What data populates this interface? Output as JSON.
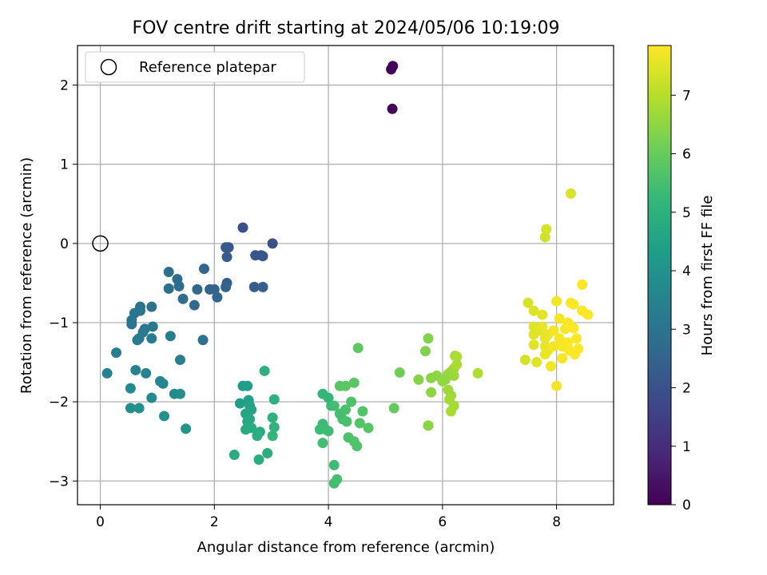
{
  "chart_data": {
    "type": "scatter",
    "title": "FOV centre drift starting at 2024/05/06 10:19:09",
    "xlabel": "Angular distance from reference (arcmin)",
    "ylabel": "Rotation from reference (arcmin)",
    "xlim": [
      -0.4,
      9.0
    ],
    "ylim": [
      -3.3,
      2.5
    ],
    "xticks": [
      0,
      2,
      4,
      6,
      8
    ],
    "yticks": [
      -3,
      -2,
      -1,
      0,
      1,
      2
    ],
    "grid": true,
    "legend": {
      "location": "upper-left",
      "entries": [
        "Reference platepar"
      ]
    },
    "reference_point": {
      "x": 0,
      "y": 0,
      "label": "Reference platepar"
    },
    "colorbar": {
      "label": "Hours from first FF file",
      "colormap": "viridis",
      "range": [
        0,
        7.85
      ],
      "ticks": [
        0,
        1,
        2,
        3,
        4,
        5,
        6,
        7
      ]
    },
    "colormap_stops": [
      "#440154",
      "#482878",
      "#3e4989",
      "#31688e",
      "#26828e",
      "#1f9e89",
      "#35b779",
      "#6ece58",
      "#b5de2b",
      "#fde725"
    ],
    "points": [
      [
        5.1,
        2.2,
        0.0
      ],
      [
        5.13,
        2.24,
        0.05
      ],
      [
        5.12,
        1.7,
        0.1
      ],
      [
        2.5,
        0.2,
        1.95
      ],
      [
        3.02,
        0.0,
        2.0
      ],
      [
        2.82,
        -0.15,
        2.05
      ],
      [
        2.72,
        -0.15,
        2.05
      ],
      [
        2.85,
        -0.16,
        2.1
      ],
      [
        2.25,
        -0.05,
        2.15
      ],
      [
        2.2,
        -0.05,
        2.2
      ],
      [
        2.22,
        -0.17,
        2.25
      ],
      [
        2.7,
        -0.55,
        2.3
      ],
      [
        2.85,
        -0.55,
        2.35
      ],
      [
        2.22,
        -0.5,
        2.4
      ],
      [
        2.2,
        -0.55,
        2.45
      ],
      [
        2.0,
        -0.58,
        2.5
      ],
      [
        1.92,
        -0.58,
        2.5
      ],
      [
        2.05,
        -0.68,
        2.55
      ],
      [
        1.82,
        -0.32,
        2.6
      ],
      [
        1.7,
        -0.58,
        2.65
      ],
      [
        1.65,
        -0.78,
        2.7
      ],
      [
        1.45,
        -0.7,
        2.75
      ],
      [
        1.35,
        -0.45,
        2.8
      ],
      [
        1.38,
        -0.54,
        2.8
      ],
      [
        1.2,
        -0.36,
        2.85
      ],
      [
        1.2,
        -0.57,
        2.9
      ],
      [
        1.8,
        -1.22,
        2.95
      ],
      [
        0.9,
        -0.8,
        3.0
      ],
      [
        0.7,
        -0.8,
        3.0
      ],
      [
        0.6,
        -0.88,
        3.05
      ],
      [
        0.7,
        -0.85,
        3.05
      ],
      [
        0.55,
        -0.97,
        3.1
      ],
      [
        0.55,
        -1.02,
        3.1
      ],
      [
        0.78,
        -1.08,
        3.15
      ],
      [
        0.92,
        -1.05,
        3.15
      ],
      [
        0.75,
        -1.12,
        3.2
      ],
      [
        0.68,
        -1.2,
        3.2
      ],
      [
        0.65,
        -1.22,
        3.25
      ],
      [
        0.9,
        -1.2,
        3.25
      ],
      [
        1.23,
        -1.17,
        3.3
      ],
      [
        1.4,
        -1.47,
        3.35
      ],
      [
        0.28,
        -1.38,
        3.4
      ],
      [
        0.12,
        -1.64,
        3.45
      ],
      [
        0.62,
        -1.6,
        3.5
      ],
      [
        0.8,
        -1.64,
        3.55
      ],
      [
        1.05,
        -1.74,
        3.6
      ],
      [
        1.1,
        -1.77,
        3.65
      ],
      [
        0.53,
        -1.83,
        3.7
      ],
      [
        0.9,
        -1.95,
        3.75
      ],
      [
        1.3,
        -1.9,
        3.8
      ],
      [
        1.4,
        -1.9,
        3.85
      ],
      [
        0.53,
        -2.08,
        3.9
      ],
      [
        0.68,
        -2.08,
        3.95
      ],
      [
        1.12,
        -2.18,
        4.0
      ],
      [
        1.5,
        -2.34,
        4.05
      ],
      [
        2.5,
        -1.8,
        4.3
      ],
      [
        2.58,
        -1.8,
        4.35
      ],
      [
        2.45,
        -2.02,
        4.4
      ],
      [
        2.6,
        -1.98,
        4.45
      ],
      [
        2.62,
        -2.05,
        4.5
      ],
      [
        2.65,
        -2.1,
        4.55
      ],
      [
        2.55,
        -2.15,
        4.6
      ],
      [
        2.62,
        -2.22,
        4.65
      ],
      [
        2.58,
        -2.25,
        4.7
      ],
      [
        2.55,
        -2.35,
        4.75
      ],
      [
        2.65,
        -2.33,
        4.8
      ],
      [
        2.8,
        -2.38,
        4.85
      ],
      [
        2.75,
        -2.43,
        4.9
      ],
      [
        2.88,
        -1.61,
        4.95
      ],
      [
        3.05,
        -1.97,
        5.0
      ],
      [
        3.02,
        -2.2,
        5.05
      ],
      [
        3.05,
        -2.32,
        5.1
      ],
      [
        3.02,
        -2.43,
        5.15
      ],
      [
        2.35,
        -2.67,
        4.8
      ],
      [
        2.78,
        -2.73,
        4.85
      ],
      [
        2.93,
        -2.65,
        4.9
      ],
      [
        3.9,
        -1.9,
        5.2
      ],
      [
        4.0,
        -1.95,
        5.25
      ],
      [
        4.05,
        -2.05,
        5.3
      ],
      [
        3.85,
        -2.35,
        5.35
      ],
      [
        3.9,
        -2.28,
        5.35
      ],
      [
        3.95,
        -2.35,
        5.4
      ],
      [
        4.0,
        -2.37,
        5.4
      ],
      [
        3.9,
        -2.52,
        5.45
      ],
      [
        4.1,
        -2.05,
        5.45
      ],
      [
        4.2,
        -2.15,
        5.5
      ],
      [
        4.25,
        -2.22,
        5.5
      ],
      [
        4.3,
        -2.1,
        5.55
      ],
      [
        4.32,
        -2.25,
        5.55
      ],
      [
        4.4,
        -2.0,
        5.6
      ],
      [
        4.35,
        -2.45,
        5.6
      ],
      [
        4.45,
        -2.5,
        5.65
      ],
      [
        4.5,
        -2.56,
        5.65
      ],
      [
        4.6,
        -2.12,
        5.7
      ],
      [
        4.55,
        -2.27,
        5.7
      ],
      [
        4.7,
        -2.33,
        5.75
      ],
      [
        4.2,
        -1.8,
        5.75
      ],
      [
        4.3,
        -1.8,
        5.8
      ],
      [
        4.45,
        -1.76,
        5.8
      ],
      [
        4.52,
        -1.32,
        5.85
      ],
      [
        4.1,
        -2.8,
        5.4
      ],
      [
        4.1,
        -3.03,
        5.45
      ],
      [
        4.15,
        -2.98,
        5.5
      ],
      [
        5.15,
        -2.08,
        5.95
      ],
      [
        5.25,
        -1.63,
        6.1
      ],
      [
        5.7,
        -1.36,
        6.3
      ],
      [
        5.75,
        -1.2,
        6.35
      ],
      [
        5.58,
        -1.72,
        6.4
      ],
      [
        5.8,
        -1.7,
        6.45
      ],
      [
        5.9,
        -1.67,
        6.5
      ],
      [
        5.8,
        -1.88,
        6.5
      ],
      [
        6.0,
        -1.74,
        6.55
      ],
      [
        6.05,
        -1.72,
        6.55
      ],
      [
        6.1,
        -1.65,
        6.6
      ],
      [
        6.15,
        -1.62,
        6.6
      ],
      [
        6.2,
        -1.58,
        6.65
      ],
      [
        6.2,
        -1.67,
        6.65
      ],
      [
        6.1,
        -1.85,
        6.7
      ],
      [
        6.15,
        -1.92,
        6.7
      ],
      [
        6.12,
        -1.97,
        6.75
      ],
      [
        6.2,
        -2.05,
        6.75
      ],
      [
        6.15,
        -2.12,
        6.8
      ],
      [
        6.22,
        -1.42,
        6.8
      ],
      [
        6.25,
        -1.43,
        6.85
      ],
      [
        6.25,
        -1.53,
        6.85
      ],
      [
        6.62,
        -1.64,
        6.9
      ],
      [
        5.75,
        -2.3,
        6.45
      ],
      [
        7.45,
        -1.47,
        7.35
      ],
      [
        7.5,
        -0.75,
        7.4
      ],
      [
        7.6,
        -0.85,
        7.45
      ],
      [
        7.6,
        -1.05,
        7.45
      ],
      [
        7.6,
        -1.15,
        7.5
      ],
      [
        7.6,
        -1.28,
        7.5
      ],
      [
        7.65,
        -1.5,
        7.5
      ],
      [
        7.7,
        -1.1,
        7.55
      ],
      [
        7.75,
        -0.9,
        7.55
      ],
      [
        7.75,
        -1.05,
        7.6
      ],
      [
        7.8,
        -1.2,
        7.6
      ],
      [
        7.8,
        -1.3,
        7.6
      ],
      [
        7.8,
        -1.4,
        7.65
      ],
      [
        7.85,
        -1.15,
        7.65
      ],
      [
        7.85,
        -1.35,
        7.65
      ],
      [
        7.9,
        -1.55,
        7.7
      ],
      [
        7.95,
        -1.3,
        7.7
      ],
      [
        7.95,
        -1.1,
        7.7
      ],
      [
        8.0,
        -0.73,
        7.72
      ],
      [
        8.0,
        -1.8,
        7.72
      ],
      [
        8.05,
        -0.95,
        7.74
      ],
      [
        8.05,
        -1.2,
        7.74
      ],
      [
        8.1,
        -1.3,
        7.76
      ],
      [
        8.1,
        -1.45,
        7.76
      ],
      [
        8.15,
        -1.08,
        7.78
      ],
      [
        8.2,
        -1.0,
        7.78
      ],
      [
        8.2,
        -1.25,
        7.8
      ],
      [
        8.22,
        -1.35,
        7.8
      ],
      [
        8.25,
        -0.75,
        7.8
      ],
      [
        8.25,
        -1.05,
        7.82
      ],
      [
        8.3,
        -0.77,
        7.82
      ],
      [
        8.3,
        -1.07,
        7.83
      ],
      [
        8.32,
        -1.4,
        7.83
      ],
      [
        8.35,
        -1.2,
        7.84
      ],
      [
        8.38,
        -1.33,
        7.84
      ],
      [
        8.45,
        -0.52,
        7.85
      ],
      [
        8.45,
        -0.85,
        7.85
      ],
      [
        8.55,
        -0.9,
        7.85
      ],
      [
        7.8,
        0.08,
        7.3
      ],
      [
        7.82,
        0.18,
        7.35
      ],
      [
        8.25,
        0.63,
        7.4
      ]
    ]
  }
}
